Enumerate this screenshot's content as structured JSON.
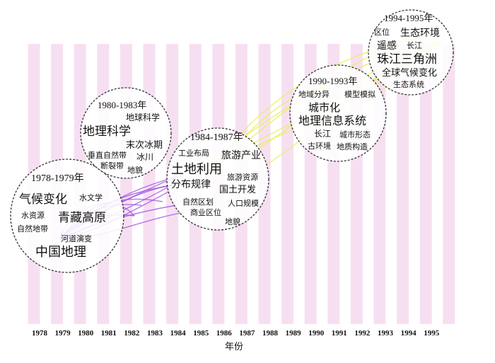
{
  "colors": {
    "stripe": "#f7dff2",
    "early_links": "#9a4fe0",
    "late_links": "#e8f05a",
    "circle_stroke": "#333333"
  },
  "axis": {
    "title": "年份",
    "years": [
      "1978",
      "1979",
      "1980",
      "1981",
      "1982",
      "1983",
      "1984",
      "1985",
      "1986",
      "1987",
      "1988",
      "1989",
      "1990",
      "1991",
      "1992",
      "1993",
      "1994",
      "1995"
    ]
  },
  "clusters": [
    {
      "id": "c1978",
      "title": "1978-1979年",
      "keywords": [
        "气候变化",
        "水文学",
        "水资源",
        "青藏高原",
        "自然地带",
        "河道演变",
        "中国地理"
      ]
    },
    {
      "id": "c1980",
      "title": "1980-1983年",
      "keywords": [
        "地球科学",
        "地理科学",
        "末次冰期",
        "垂直自然带",
        "冰川",
        "断裂带",
        "地貌"
      ]
    },
    {
      "id": "c1984",
      "title": "1984-1987年",
      "keywords": [
        "工业布局",
        "旅游产业",
        "土地利用",
        "旅游资源",
        "分布规律",
        "国土开发",
        "自然区划",
        "人口规模",
        "商业区位",
        "地貌"
      ]
    },
    {
      "id": "c1990",
      "title": "1990-1993年",
      "keywords": [
        "地域分异",
        "模型模拟",
        "城市化",
        "地理信息系统",
        "长江",
        "城市形态",
        "古环境",
        "地质构造"
      ]
    },
    {
      "id": "c1994",
      "title": "1994-1995年",
      "keywords": [
        "区位",
        "生态环境",
        "遥感",
        "长江",
        "珠江三角洲",
        "全球气候变化",
        "生态系统"
      ]
    }
  ]
}
